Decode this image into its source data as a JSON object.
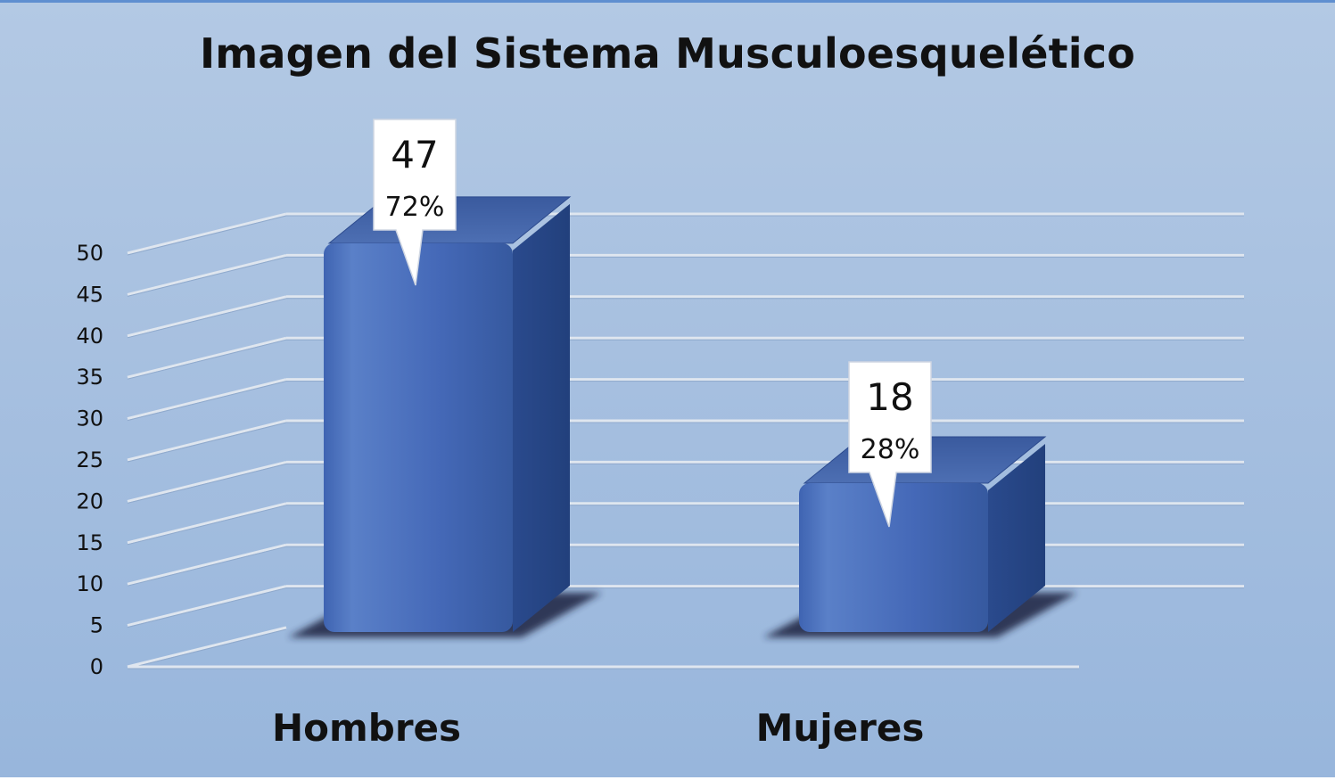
{
  "chart_data": {
    "type": "bar",
    "title": "Imagen del Sistema Musculoesquelético",
    "categories": [
      "Hombres",
      "Mujeres"
    ],
    "values": [
      47,
      18
    ],
    "percent_labels": [
      "72%",
      "28%"
    ],
    "value_labels": [
      "47",
      "18"
    ],
    "xlabel": "",
    "ylabel": "",
    "ylim": [
      0,
      50
    ],
    "yticks": [
      "0",
      "5",
      "10",
      "15",
      "20",
      "25",
      "30",
      "35",
      "40",
      "45",
      "50"
    ],
    "grid": true,
    "legend": "none",
    "colors": {
      "bar_front": "#4a70be",
      "bar_side": "#2c4d92",
      "bar_top": "#3d5fa8",
      "grid": "#dfe6ef"
    }
  }
}
